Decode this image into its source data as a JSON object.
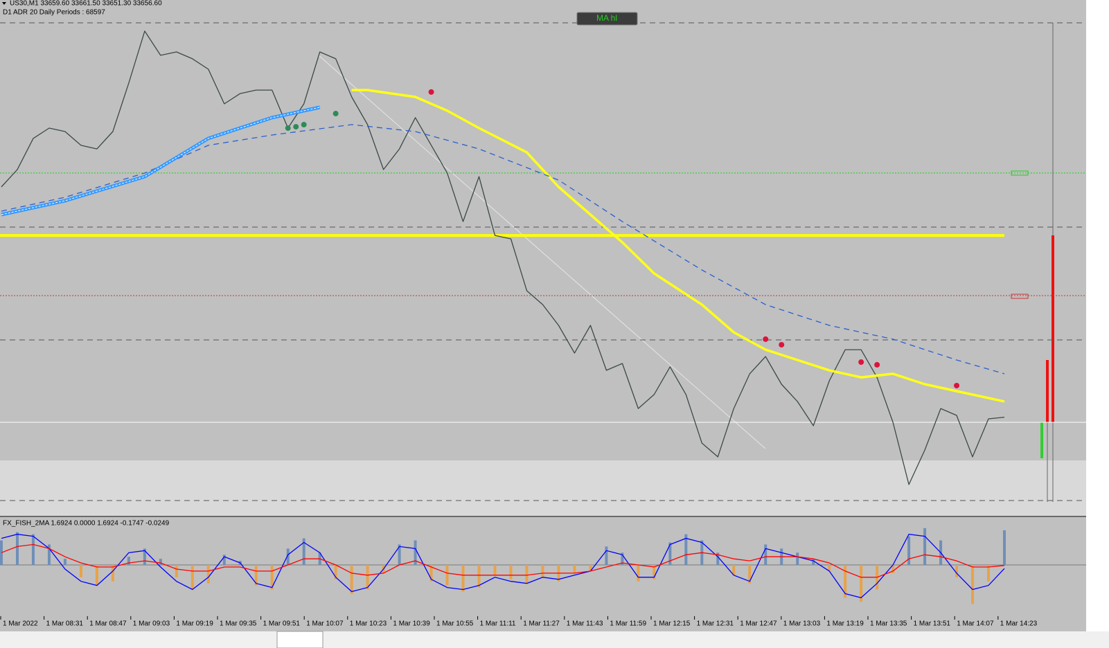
{
  "button": "MA hl",
  "time_axis": {
    "labels": [
      "1 Mar 2022",
      "1 Mar 08:31",
      "1 Mar 08:47",
      "1 Mar 09:03",
      "1 Mar 09:19",
      "1 Mar 09:35",
      "1 Mar 09:51",
      "1 Mar 10:07",
      "1 Mar 10:23",
      "1 Mar 10:39",
      "1 Mar 10:55",
      "1 Mar 11:11",
      "1 Mar 11:27",
      "1 Mar 11:43",
      "1 Mar 11:59",
      "1 Mar 12:15",
      "1 Mar 12:31",
      "1 Mar 12:47",
      "1 Mar 13:03",
      "1 Mar 13:19",
      "1 Mar 13:35",
      "1 Mar 13:51",
      "1 Mar 14:07",
      "1 Mar 14:23"
    ]
  },
  "chart_data": [
    {
      "type": "line",
      "title": "US30,M1  33659.60 33661.50 33651.30 33656.60",
      "subtitle": "D1 ADR 20 Daily Periods : 68597",
      "xlim": [
        0,
        63
      ],
      "ylim": [
        33600,
        33920
      ],
      "levels": [
        {
          "value": 33920,
          "color": "#555555",
          "style": "dashed"
        },
        {
          "value": 33819.7,
          "color": "#22cc22",
          "style": "dotted"
        },
        {
          "value": 33783.6,
          "color": "#555555",
          "style": "dashed"
        },
        {
          "value": 33778.0,
          "color": "#ffff00",
          "style": "thick"
        },
        {
          "value": 33737.8,
          "color": "#cc3333",
          "style": "dotted"
        },
        {
          "value": 33708.2,
          "color": "#555555",
          "style": "dashed"
        },
        {
          "value": 33653.2,
          "color": "#ffffff",
          "style": "solid"
        },
        {
          "value": 33600.9,
          "color": "#555555",
          "style": "dashed"
        }
      ],
      "series": [
        {
          "kind": "line",
          "style": "thin",
          "color": "#3c4848",
          "x": [
            0,
            1,
            2,
            3,
            4,
            5,
            6,
            7,
            8,
            9,
            10,
            11,
            12,
            13,
            14,
            15,
            16,
            17,
            18,
            19,
            20,
            21,
            22,
            23,
            24,
            25,
            26,
            27,
            28,
            29,
            30,
            31,
            32,
            33,
            34,
            35,
            36,
            37,
            38,
            39,
            40,
            41,
            42,
            43,
            44,
            45,
            46,
            47,
            48,
            49,
            50,
            51,
            52,
            53,
            54,
            55,
            56,
            57,
            58,
            59,
            60,
            61,
            62,
            63
          ],
          "values": [
            33810.4,
            33822.0,
            33842.8,
            33849.7,
            33847.4,
            33838.2,
            33835.8,
            33847.4,
            33879.8,
            33914.5,
            33898.3,
            33900.6,
            33896.0,
            33889.0,
            33865.9,
            33872.8,
            33875.1,
            33875.1,
            33849.7,
            33865.9,
            33900.6,
            33896.0,
            33870.5,
            33852.0,
            33822.0,
            33835.8,
            33856.7,
            33838.2,
            33819.7,
            33787.3,
            33817.3,
            33778.0,
            33775.7,
            33741.1,
            33731.8,
            33717.9,
            33699.4,
            33717.9,
            33687.9,
            33692.5,
            33662.4,
            33671.7,
            33690.2,
            33671.7,
            33639.3,
            33630.1,
            33662.4,
            33685.6,
            33697.1,
            33678.6,
            33667.1,
            33650.9,
            33680.9,
            33701.7,
            33701.7,
            33683.2,
            33653.2,
            33611.6,
            33634.7,
            33662.4,
            33657.8,
            33630.1,
            33655.5,
            33656.6
          ]
        },
        {
          "kind": "line",
          "style": "thick",
          "color": "#ffff1a",
          "x": [
            22,
            23,
            26,
            28,
            30,
            33,
            35,
            37,
            39,
            41,
            44,
            46,
            48,
            50,
            52,
            54,
            56,
            58,
            60,
            63
          ],
          "values": [
            33875.1,
            33875.1,
            33870.5,
            33861.3,
            33849.7,
            33833.5,
            33810.4,
            33791.9,
            33773.4,
            33752.6,
            33731.8,
            33713.3,
            33701.7,
            33694.8,
            33687.9,
            33683.2,
            33685.6,
            33678.6,
            33674.0,
            33667.1
          ]
        },
        {
          "kind": "line",
          "style": "dashed",
          "color": "#2a5fd0",
          "x": [
            0,
            4,
            9,
            13,
            17,
            22,
            26,
            30,
            35,
            39,
            44,
            48,
            52,
            56,
            60,
            63
          ],
          "values": [
            33794.2,
            33803.5,
            33819.7,
            33838.2,
            33845.1,
            33852.0,
            33847.4,
            33835.8,
            33815.0,
            33787.3,
            33754.9,
            33731.8,
            33717.9,
            33708.7,
            33694.8,
            33685.6
          ]
        },
        {
          "kind": "line",
          "style": "band",
          "color": "#3399ff",
          "x": [
            0,
            4,
            9,
            13,
            17,
            20
          ],
          "values": [
            33791.9,
            33801.2,
            33817.3,
            33842.8,
            33856.7,
            33863.6
          ]
        },
        {
          "kind": "marker",
          "color": "#dc143c",
          "x": [
            27,
            48,
            49,
            54,
            55,
            60
          ],
          "values": [
            33873.8,
            33708.7,
            33705.0,
            33693.4,
            33691.6,
            33677.7
          ]
        },
        {
          "kind": "marker",
          "color": "#2e8b57",
          "x": [
            18,
            18.5,
            19,
            21
          ],
          "values": [
            33849.7,
            33850.6,
            33852.0,
            33859.4
          ]
        }
      ]
    },
    {
      "type": "combo",
      "title": "FX_FISH_2MA 1.6924 0.0000 1.6924 -0.1747 -0.0249",
      "xlim": [
        0,
        63
      ],
      "ylim": [
        -2.5,
        2.3
      ],
      "series": [
        {
          "kind": "bar",
          "color": "#6f8fb8",
          "negative_color": "#e8a24a",
          "values": [
            1.2,
            1.6,
            1.5,
            1.0,
            0.3,
            -0.6,
            -1.0,
            -0.8,
            0.4,
            0.8,
            0.3,
            -0.6,
            -1.2,
            -0.9,
            0.5,
            0.2,
            -1.0,
            -1.2,
            0.8,
            1.3,
            0.6,
            -0.7,
            -1.4,
            -1.2,
            -0.4,
            1.0,
            1.2,
            -0.8,
            -1.0,
            -1.3,
            -1.1,
            -0.5,
            -0.7,
            -0.9,
            -0.6,
            -0.8,
            -0.4,
            -0.3,
            0.9,
            0.6,
            -0.8,
            -0.7,
            1.1,
            1.5,
            1.2,
            0.6,
            -0.5,
            -0.9,
            1.0,
            0.8,
            0.6,
            0.3,
            -0.3,
            -1.6,
            -1.8,
            -1.2,
            -0.4,
            1.4,
            1.8,
            1.2,
            -0.6,
            -1.9,
            -0.8,
            1.6924
          ]
        },
        {
          "kind": "line",
          "color": "#0000ff",
          "values": [
            1.3,
            1.5,
            1.4,
            0.8,
            -0.2,
            -0.8,
            -1.0,
            -0.3,
            0.6,
            0.7,
            -0.1,
            -0.8,
            -1.2,
            -0.6,
            0.4,
            0.1,
            -0.9,
            -1.1,
            0.5,
            1.1,
            0.6,
            -0.6,
            -1.3,
            -1.1,
            -0.2,
            0.9,
            0.8,
            -0.7,
            -1.1,
            -1.2,
            -1.0,
            -0.6,
            -0.8,
            -0.9,
            -0.6,
            -0.7,
            -0.5,
            -0.3,
            0.7,
            0.5,
            -0.6,
            -0.6,
            1.0,
            1.3,
            1.1,
            0.4,
            -0.5,
            -0.8,
            0.8,
            0.6,
            0.4,
            0.2,
            -0.3,
            -1.4,
            -1.6,
            -0.9,
            0.0,
            1.5,
            1.4,
            0.6,
            -0.4,
            -1.2,
            -1.0,
            -0.1747
          ]
        },
        {
          "kind": "line",
          "color": "#ff0000",
          "values": [
            0.6,
            0.9,
            1.0,
            0.8,
            0.4,
            0.1,
            -0.1,
            -0.1,
            0.1,
            0.2,
            0.1,
            -0.2,
            -0.3,
            -0.3,
            -0.1,
            -0.1,
            -0.3,
            -0.3,
            0.0,
            0.3,
            0.3,
            0.0,
            -0.4,
            -0.5,
            -0.4,
            0.0,
            0.2,
            -0.1,
            -0.4,
            -0.5,
            -0.5,
            -0.5,
            -0.5,
            -0.5,
            -0.4,
            -0.4,
            -0.4,
            -0.3,
            -0.1,
            0.1,
            0.0,
            -0.1,
            0.2,
            0.5,
            0.6,
            0.5,
            0.3,
            0.2,
            0.4,
            0.4,
            0.4,
            0.3,
            0.1,
            -0.3,
            -0.6,
            -0.6,
            -0.3,
            0.3,
            0.5,
            0.4,
            0.2,
            -0.1,
            -0.1,
            -0.0249
          ]
        }
      ]
    }
  ]
}
